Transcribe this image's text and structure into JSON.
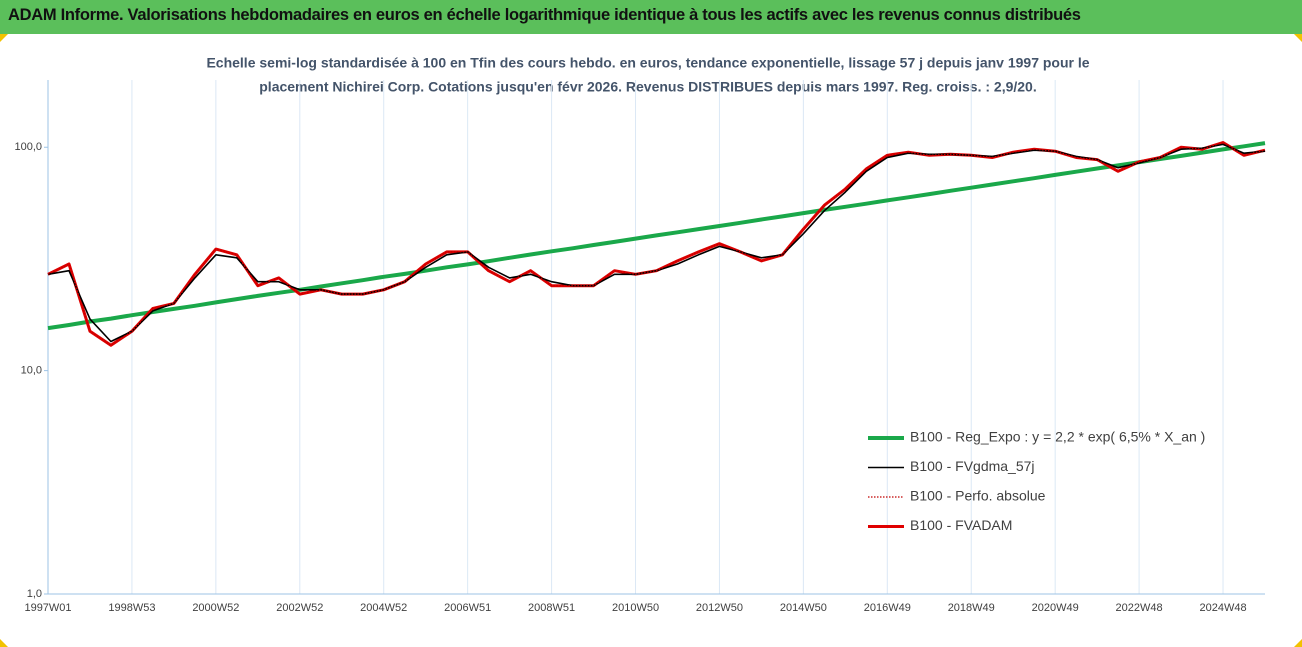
{
  "chart_data": {
    "type": "line",
    "title": "ADAM Informe. Valorisations hebdomadaires en euros en échelle logarithmique identique à tous les actifs avec les revenus connus distribués",
    "subtitle": [
      "Echelle semi-log standardisée à 100 en Tfin des cours hebdo. en euros, tendance exponentielle, lissage 57 j depuis janv 1997 pour le",
      "placement Nichirei Corp. Cotations jusqu'en févr 2026. Revenus DISTRIBUES depuis mars 1997. Reg. croiss. : 2,9/20."
    ],
    "log_scale": true,
    "grid": true,
    "legend": "lower right",
    "ylim": [
      1,
      200
    ],
    "yticks": [
      {
        "value": 1,
        "label": "1,0"
      },
      {
        "value": 10,
        "label": "10,0"
      },
      {
        "value": 100,
        "label": "100,0"
      }
    ],
    "categories": [
      "1997W01",
      null,
      null,
      null,
      "1998W53",
      null,
      null,
      null,
      "2000W52",
      null,
      null,
      null,
      "2002W52",
      null,
      null,
      null,
      "2004W52",
      null,
      null,
      null,
      "2006W51",
      null,
      null,
      null,
      "2008W51",
      null,
      null,
      null,
      "2010W50",
      null,
      null,
      null,
      "2012W50",
      null,
      null,
      null,
      "2014W50",
      null,
      null,
      null,
      "2016W49",
      null,
      null,
      null,
      "2018W49",
      null,
      null,
      null,
      "2020W49",
      null,
      null,
      null,
      "2022W48",
      null,
      null,
      null,
      "2024W48",
      null,
      null
    ],
    "series": [
      {
        "name": "B100 - Reg_Expo : y = 2,2 * exp( 6,5% *  X_an )",
        "color": "#1aa84a",
        "style": "solid",
        "width": 4,
        "values": [
          15.5,
          16.0,
          16.6,
          17.1,
          17.7,
          18.3,
          18.9,
          19.5,
          20.2,
          20.9,
          21.6,
          22.3,
          23.0,
          23.8,
          24.6,
          25.4,
          26.3,
          27.1,
          28.0,
          29.0,
          29.9,
          30.9,
          32.0,
          33.1,
          34.2,
          35.3,
          36.5,
          37.7,
          39.0,
          40.3,
          41.6,
          43.0,
          44.4,
          45.9,
          47.5,
          49.0,
          50.7,
          52.4,
          54.1,
          55.9,
          57.8,
          59.7,
          61.7,
          63.8,
          65.9,
          68.1,
          70.4,
          72.7,
          75.2,
          77.7,
          80.3,
          82.9,
          85.7,
          88.6,
          91.5,
          94.6,
          97.8,
          101.0,
          104.4
        ]
      },
      {
        "name": "B100 - FVADAM",
        "color": "#e00000",
        "style": "solid",
        "width": 3,
        "values": [
          27,
          30,
          15,
          13,
          15,
          19,
          20,
          27,
          35,
          33,
          24,
          26,
          22,
          23,
          22,
          22,
          23,
          25,
          30,
          34,
          34,
          28,
          25,
          28,
          24,
          24,
          24,
          28,
          27,
          28,
          31,
          34,
          37,
          34,
          31,
          33,
          43,
          55,
          65,
          80,
          92,
          95,
          92,
          93,
          92,
          90,
          95,
          98,
          96,
          90,
          88,
          78,
          86,
          90,
          100,
          98,
          105,
          92,
          97
        ]
      },
      {
        "name": "B100 - FVgdma_57j",
        "color": "#000000",
        "style": "solid",
        "width": 1.6,
        "values": [
          27,
          28,
          17,
          13.5,
          15,
          18.5,
          20,
          26,
          33,
          32,
          25,
          25,
          23,
          23,
          22,
          22,
          23,
          25,
          29,
          33,
          34,
          29,
          26,
          27,
          25,
          24,
          24,
          27,
          27,
          28,
          30,
          33,
          36,
          34,
          32,
          33,
          41,
          52,
          63,
          78,
          90,
          94,
          93,
          93,
          92,
          91,
          94,
          97,
          96,
          91,
          88,
          81,
          85,
          90,
          98,
          99,
          103,
          94,
          96
        ]
      },
      {
        "name": "B100 - Perfo. absolue",
        "color": "#c00000",
        "style": "dotted",
        "width": 1.2,
        "values": [
          27,
          30,
          15,
          13,
          15,
          19,
          20,
          27,
          35,
          33,
          24,
          26,
          22,
          23,
          22,
          22,
          23,
          25,
          30,
          34,
          34,
          28,
          25,
          28,
          24,
          24,
          24,
          28,
          27,
          28,
          31,
          34,
          37,
          34,
          31,
          33,
          43,
          55,
          65,
          80,
          92,
          95,
          92,
          93,
          92,
          90,
          95,
          98,
          96,
          90,
          88,
          78,
          86,
          90,
          100,
          98,
          105,
          92,
          97
        ]
      }
    ]
  }
}
